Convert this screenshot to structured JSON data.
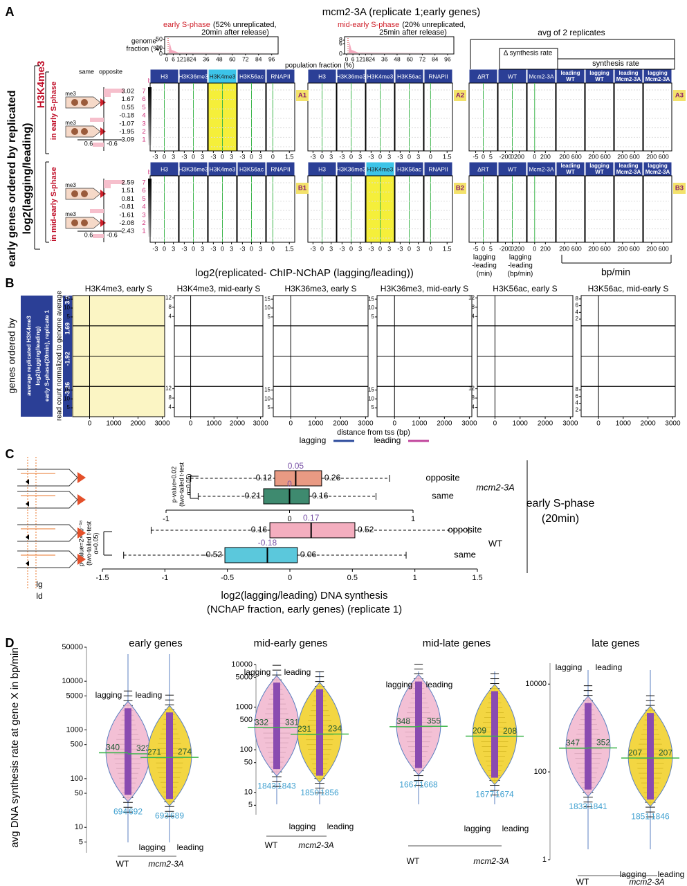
{
  "panel_a": {
    "label": "A",
    "title": "mcm2-3A (replicate 1;early genes)",
    "inset_left": {
      "caption_red": "early S-phase",
      "caption": [
        "(52% unreplicated,",
        "20min after release)"
      ],
      "ylabel": [
        "genome",
        "fraction (%)"
      ],
      "ylim": [
        0,
        60
      ],
      "yticks": [
        50,
        20,
        0
      ],
      "xlim": [
        0,
        100
      ],
      "xticks": [
        0,
        6,
        12,
        18,
        24,
        36,
        48,
        60,
        72,
        84,
        96
      ]
    },
    "inset_right": {
      "caption_red": "mid-early S-phase",
      "caption": [
        "(20% unreplicated,",
        "25min after release)"
      ],
      "ylim": [
        0,
        10
      ],
      "yticks": [
        8,
        6,
        0
      ],
      "xlim": [
        0,
        100
      ],
      "xticks": [
        0,
        6,
        12,
        18,
        24,
        36,
        48,
        60,
        72,
        84,
        96
      ]
    },
    "population_label": "population fraction (%)",
    "side_label": [
      "early genes ordered by replicated",
      "log2(lagging/leading)"
    ],
    "mark_label": "H3K4me3",
    "row_labels": [
      "in early S-phase",
      "in mid-early S-phase"
    ],
    "diagram_labels": {
      "same": "same",
      "opposite": "opposite",
      "me3": "me3"
    },
    "diagram_ticks": [
      0.6,
      -0.6
    ],
    "bins_label": "bins",
    "bins": [
      7,
      6,
      5,
      4,
      3,
      2,
      1
    ],
    "bin_values": [
      [
        3.02,
        1.67,
        0.55,
        -0.18,
        -1.07,
        -1.95,
        -3.09
      ],
      [
        2.59,
        1.51,
        0.81,
        -0.81,
        -1.61,
        -2.08,
        -2.43
      ]
    ],
    "columns": [
      "H3",
      "H3K36me3",
      "H3K4me3",
      "H3K56ac",
      "RNAPII"
    ],
    "col_xlim": [
      [
        -4,
        4
      ],
      [
        -4,
        4
      ],
      [
        -4,
        4
      ],
      [
        -4,
        4
      ],
      [
        -0.4,
        1.8
      ]
    ],
    "col_ticks": [
      [
        -3,
        0,
        3
      ],
      [
        -3,
        0,
        3
      ],
      [
        -3,
        0,
        3
      ],
      [
        -3,
        0,
        3
      ],
      [
        0,
        1.5
      ]
    ],
    "badges": [
      [
        "A1",
        "A2",
        "A3"
      ],
      [
        "B1",
        "B2",
        "B3"
      ]
    ],
    "right_header": "avg of 2 replicates",
    "delta_header": "Δ synthesis rate",
    "synthesis_header": "synthesis rate",
    "right_columns": [
      "ΔRT",
      "WT",
      "Mcm2-3A",
      [
        "leading",
        "WT"
      ],
      [
        "lagging",
        "WT"
      ],
      [
        "leading",
        "Mcm2-3A"
      ],
      [
        "lagging",
        "Mcm2-3A"
      ]
    ],
    "right_xlim": [
      [
        -8,
        8
      ],
      [
        -350,
        350
      ],
      [
        -100,
        350
      ],
      [
        0,
        800
      ],
      [
        0,
        800
      ],
      [
        0,
        800
      ],
      [
        0,
        800
      ]
    ],
    "right_ticks": [
      [
        -5,
        0,
        5
      ],
      [
        -200,
        0,
        200
      ],
      [
        0,
        200
      ],
      [
        200,
        600
      ],
      [
        200,
        600
      ],
      [
        200,
        600
      ],
      [
        200,
        600
      ]
    ],
    "xlabel": "log2(replicated- ChIP-NChAP (lagging/leading))",
    "right_xlabels": [
      [
        "lagging",
        "-leading",
        "(min)"
      ],
      [
        "lagging",
        "-leading",
        "(bp/min)"
      ],
      "bp/min"
    ]
  },
  "panel_b": {
    "label": "B",
    "titles": [
      "H3K4me3, early S",
      "H3K4me3, mid-early S",
      "H3K36me3, early S",
      "H3K36me3, mid-early S",
      "H3K56ac, early S",
      "H3K56ac, mid-early S"
    ],
    "side_label": "genes ordered by",
    "box_label": [
      "average replicated H3K4me3",
      "log2(lagging/leading)",
      "early S-phase(20min), replicate 1"
    ],
    "ylabel": "read count normalized to genome average",
    "row_values": [
      3.07,
      1.69,
      -1.92,
      -3.26
    ],
    "xlim": [
      -700,
      3100
    ],
    "xticks": [
      0,
      1000,
      2000,
      3000
    ],
    "ylims": [
      [
        0,
        17
      ],
      [
        0,
        13
      ],
      [
        0,
        17
      ],
      [
        0,
        17
      ],
      [
        0,
        13
      ],
      [
        0,
        9
      ]
    ],
    "yticks": [
      [
        5,
        10,
        15
      ],
      [
        4,
        8,
        12
      ],
      [
        5,
        10,
        15
      ],
      [
        5,
        10,
        15
      ],
      [
        4,
        8,
        12
      ],
      [
        2,
        4,
        6,
        8
      ]
    ],
    "xlabel": "distance from tss (bp)",
    "legend": [
      "lagging",
      "leading"
    ],
    "colors": [
      "#2b4a9b",
      "#c0449b"
    ]
  },
  "panel_c": {
    "label": "C",
    "groups": [
      {
        "name": "mcm2-3A",
        "xlim": [
          -1,
          1
        ],
        "xticks": [
          -1,
          0,
          1
        ],
        "pvalue": [
          "p-value=0.02",
          "(two-tailed t-test",
          "α=0.05)"
        ],
        "rows": [
          {
            "name": "opposite",
            "q1": -0.12,
            "median": 0.05,
            "q3": 0.26,
            "whisker_low": -0.8,
            "whisker_high": 0.81,
            "color": "#e99a83"
          },
          {
            "name": "same",
            "q1": -0.21,
            "median": 0,
            "q3": 0.16,
            "whisker_low": -0.74,
            "whisker_high": 0.7,
            "color": "#3e8a6f"
          }
        ]
      },
      {
        "name": "WT",
        "xlim": [
          -1.5,
          1.5
        ],
        "xticks": [
          -1.5,
          -1,
          -0.5,
          0,
          0.5,
          1,
          1.5
        ],
        "pvalue": [
          "p-value=2×10⁻¹⁸",
          "(two-tailed t-test",
          "α=0.05)"
        ],
        "rows": [
          {
            "name": "opposite",
            "q1": -0.16,
            "median": 0.17,
            "q3": 0.52,
            "whisker_low": -1.11,
            "whisker_high": 1.43,
            "color": "#f4aebf"
          },
          {
            "name": "same",
            "q1": -0.52,
            "median": -0.18,
            "q3": 0.06,
            "whisker_low": -1.33,
            "whisker_high": 0.93,
            "color": "#5bc8dc"
          }
        ]
      }
    ],
    "xlabel": [
      "log2(lagging/leading) DNA synthesis",
      "(NChAP fraction, early genes) (replicate 1)"
    ],
    "condition": [
      "early S-phase",
      "(20min)"
    ],
    "diagram_labels": [
      "lg",
      "ld"
    ]
  },
  "panel_d": {
    "label": "D",
    "ylabel": "avg DNA synthesis rate at gene X in bp/min",
    "side_labels": [
      "lagging",
      "leading"
    ],
    "groups": [
      "WT",
      "mcm2-3A"
    ],
    "plots": [
      {
        "title": "early genes",
        "ylim": [
          3,
          50000
        ],
        "yticks": [
          5,
          10,
          50,
          100,
          500,
          1000,
          5000,
          10000,
          50000
        ],
        "medians": [
          340,
          323,
          271,
          274
        ],
        "counts": [
          694,
          692,
          693,
          689
        ]
      },
      {
        "title": "mid-early genes",
        "ylim": [
          3,
          10000
        ],
        "yticks": [
          5,
          10,
          50,
          100,
          500,
          1000,
          5000,
          10000
        ],
        "medians": [
          332,
          331,
          231,
          234
        ],
        "counts": [
          1843,
          1843,
          1850,
          1856
        ]
      },
      {
        "title": "mid-late genes",
        "ylim": [
          3,
          10000
        ],
        "medians": [
          348,
          355,
          209,
          208
        ],
        "counts": [
          1667,
          1668,
          1677,
          1674
        ]
      },
      {
        "title": "late genes",
        "ylim": [
          1,
          30000
        ],
        "yticks": [
          1,
          100,
          10000
        ],
        "medians": [
          347,
          352,
          207,
          207
        ],
        "counts": [
          1833,
          1841,
          1851,
          1846
        ]
      }
    ]
  }
}
